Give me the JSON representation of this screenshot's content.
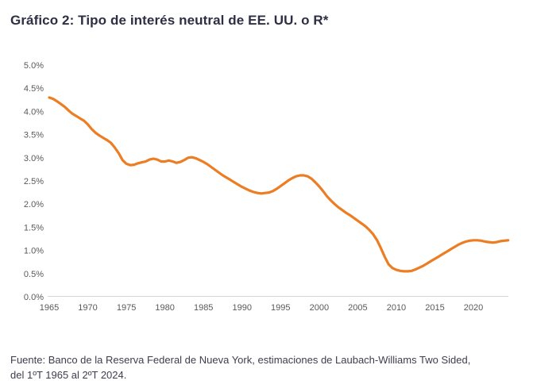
{
  "title": "Gráfico 2: Tipo de interés neutral de EE. UU. o R*",
  "source": {
    "line1": "Fuente: Banco de la Reserva Federal de Nueva York, estimaciones de Laubach-Williams Two Sided,",
    "line2": "del 1ºT 1965 al 2ºT 2024."
  },
  "colors": {
    "title_text": "#2e2e45",
    "source_text": "#3d3d4f",
    "tick_text": "#595959",
    "axis_line": "#d6d6d6",
    "series_line": "#ED7D22"
  },
  "chart_data": {
    "type": "line",
    "title": "Gráfico 2: Tipo de interés neutral de EE. UU. o R*",
    "xlabel": "",
    "ylabel": "",
    "xlim": [
      1964.5,
      2025
    ],
    "ylim": [
      0,
      5
    ],
    "grid": false,
    "legend": "none",
    "line_color": "#ED7D22",
    "axis_color": "#d6d6d6",
    "x_ticks": [
      1965,
      1970,
      1975,
      1980,
      1985,
      1990,
      1995,
      2000,
      2005,
      2010,
      2015,
      2020
    ],
    "y_ticks": [
      {
        "value": 5.0,
        "label": "5.0%"
      },
      {
        "value": 4.5,
        "label": "4.5%"
      },
      {
        "value": 4.0,
        "label": "4.0%"
      },
      {
        "value": 3.5,
        "label": "3.5%"
      },
      {
        "value": 3.0,
        "label": "3.0%"
      },
      {
        "value": 2.5,
        "label": "2.5%"
      },
      {
        "value": 2.0,
        "label": "2.0%"
      },
      {
        "value": 1.5,
        "label": "1.5%"
      },
      {
        "value": 1.0,
        "label": "1.0%"
      },
      {
        "value": 0.5,
        "label": "0.5%"
      },
      {
        "value": 0.0,
        "label": "0.0%"
      }
    ],
    "series": [
      {
        "name": "Tipo de interés neutral de EE. UU. (R*)",
        "x": [
          1965.0,
          1965.5,
          1966.0,
          1966.5,
          1967.0,
          1967.5,
          1968.0,
          1968.5,
          1969.0,
          1969.5,
          1970.0,
          1970.5,
          1971.0,
          1971.5,
          1972.0,
          1972.5,
          1973.0,
          1973.5,
          1974.0,
          1974.5,
          1975.0,
          1975.5,
          1976.0,
          1976.5,
          1977.0,
          1977.5,
          1978.0,
          1978.5,
          1979.0,
          1979.5,
          1980.0,
          1980.5,
          1981.0,
          1981.5,
          1982.0,
          1982.5,
          1983.0,
          1983.5,
          1984.0,
          1984.5,
          1985.0,
          1985.5,
          1986.0,
          1986.5,
          1987.0,
          1987.5,
          1988.0,
          1988.5,
          1989.0,
          1989.5,
          1990.0,
          1990.5,
          1991.0,
          1991.5,
          1992.0,
          1992.5,
          1993.0,
          1993.5,
          1994.0,
          1994.5,
          1995.0,
          1995.5,
          1996.0,
          1996.5,
          1997.0,
          1997.5,
          1998.0,
          1998.5,
          1999.0,
          1999.5,
          2000.0,
          2000.5,
          2001.0,
          2001.5,
          2002.0,
          2002.5,
          2003.0,
          2003.5,
          2004.0,
          2004.5,
          2005.0,
          2005.5,
          2006.0,
          2006.5,
          2007.0,
          2007.5,
          2008.0,
          2008.5,
          2009.0,
          2009.5,
          2010.0,
          2010.5,
          2011.0,
          2011.5,
          2012.0,
          2012.5,
          2013.0,
          2013.5,
          2014.0,
          2014.5,
          2015.0,
          2015.5,
          2016.0,
          2016.5,
          2017.0,
          2017.5,
          2018.0,
          2018.5,
          2019.0,
          2019.5,
          2020.0,
          2020.5,
          2021.0,
          2021.5,
          2022.0,
          2022.5,
          2023.0,
          2023.5,
          2024.0,
          2024.5
        ],
        "values": [
          4.3,
          4.27,
          4.22,
          4.16,
          4.1,
          4.02,
          3.95,
          3.9,
          3.85,
          3.8,
          3.72,
          3.62,
          3.54,
          3.48,
          3.43,
          3.38,
          3.32,
          3.22,
          3.1,
          2.95,
          2.87,
          2.84,
          2.85,
          2.88,
          2.9,
          2.92,
          2.96,
          2.98,
          2.96,
          2.92,
          2.92,
          2.94,
          2.92,
          2.89,
          2.91,
          2.95,
          3.0,
          3.01,
          2.99,
          2.95,
          2.91,
          2.86,
          2.8,
          2.74,
          2.68,
          2.62,
          2.57,
          2.52,
          2.47,
          2.42,
          2.37,
          2.33,
          2.29,
          2.26,
          2.24,
          2.23,
          2.24,
          2.25,
          2.28,
          2.33,
          2.39,
          2.45,
          2.51,
          2.56,
          2.6,
          2.62,
          2.62,
          2.6,
          2.55,
          2.47,
          2.38,
          2.28,
          2.17,
          2.08,
          2.0,
          1.93,
          1.87,
          1.81,
          1.76,
          1.7,
          1.64,
          1.58,
          1.52,
          1.44,
          1.35,
          1.22,
          1.05,
          0.86,
          0.7,
          0.62,
          0.58,
          0.56,
          0.55,
          0.55,
          0.56,
          0.59,
          0.63,
          0.67,
          0.72,
          0.77,
          0.82,
          0.87,
          0.92,
          0.97,
          1.02,
          1.07,
          1.12,
          1.16,
          1.19,
          1.21,
          1.22,
          1.22,
          1.21,
          1.19,
          1.18,
          1.17,
          1.18,
          1.2,
          1.21,
          1.22
        ]
      }
    ]
  }
}
